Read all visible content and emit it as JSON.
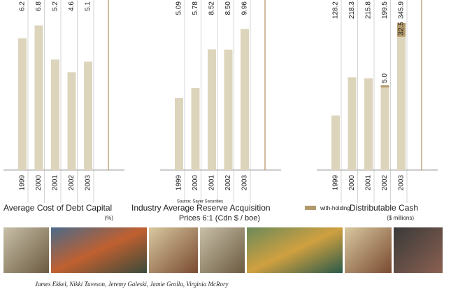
{
  "chart_data": [
    {
      "type": "bar",
      "title": "Average Cost of Debt Capital",
      "subtitle": "(%)",
      "categories": [
        "1999",
        "2000",
        "2001",
        "2002",
        "2003"
      ],
      "values": [
        6.2,
        6.8,
        5.2,
        4.6,
        5.1
      ],
      "color": "#ddd4bc",
      "ylim": [
        0,
        8
      ]
    },
    {
      "type": "bar",
      "title": "Industry Average Reserve Acquisition",
      "subtitle": "Prices 6:1 (Cdn $ / boe)",
      "source": "Source: Sayer Securities",
      "categories": [
        "1999",
        "2000",
        "2001",
        "2002",
        "2003"
      ],
      "values": [
        5.09,
        5.78,
        8.52,
        8.5,
        9.96
      ],
      "value_labels": [
        "5.09",
        "5.78",
        "8.52",
        "8.50",
        "9.96"
      ],
      "color": "#ddd4bc",
      "ylim": [
        0,
        12
      ]
    },
    {
      "type": "bar",
      "title": "Distributable Cash",
      "subtitle": "($ millions)",
      "categories": [
        "1999",
        "2000",
        "2001",
        "2002",
        "2003"
      ],
      "series": [
        {
          "color": "#ddd4bc",
          "values": [
            128.2,
            218.3,
            215.8,
            199.5,
            345.9
          ]
        },
        {
          "name": "with-holding",
          "color": "#b39a6b",
          "values": [
            null,
            null,
            null,
            5.0,
            32.5
          ],
          "value_labels": [
            null,
            null,
            null,
            "5.0",
            "32.5"
          ]
        }
      ],
      "ylim": [
        0,
        400
      ]
    }
  ],
  "caption": "James Ekkel, Nikki Tuveson, Jeremy Galeski, Jamie Grolla, Virginia McRory"
}
